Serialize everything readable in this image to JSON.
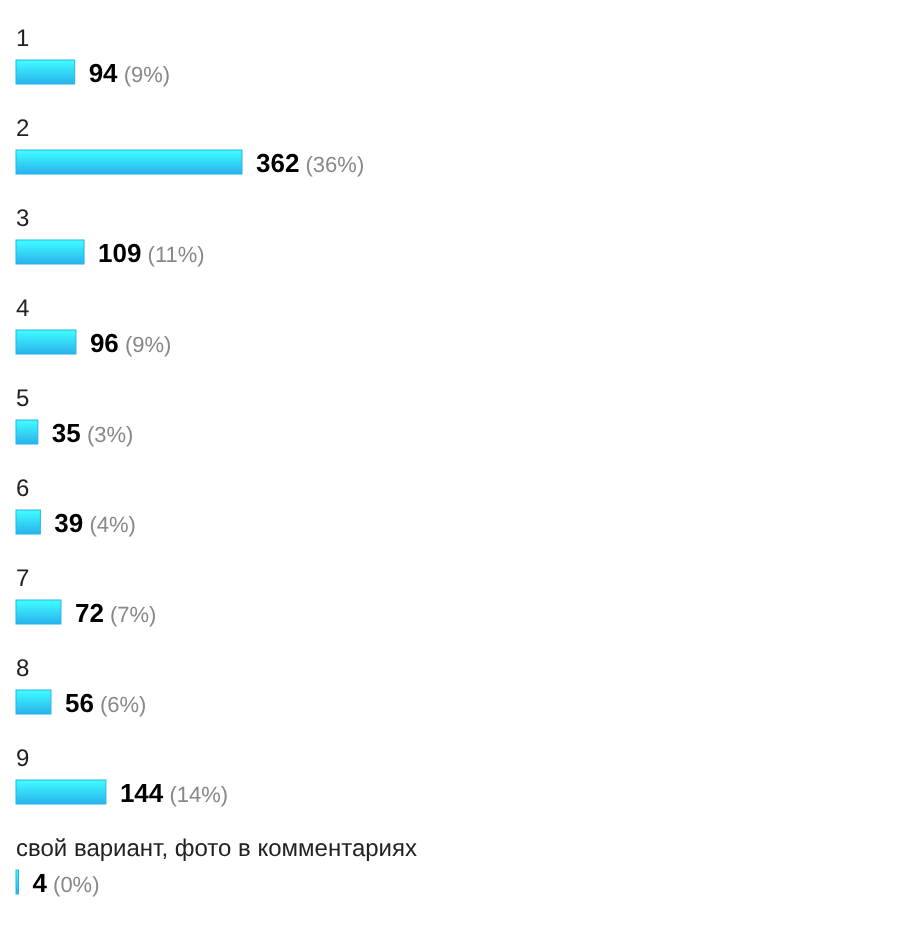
{
  "chart_data": {
    "type": "bar",
    "orientation": "horizontal",
    "categories": [
      "1",
      "2",
      "3",
      "4",
      "5",
      "6",
      "7",
      "8",
      "9",
      "свой вариант, фото в комментариях"
    ],
    "values": [
      94,
      362,
      109,
      96,
      35,
      39,
      72,
      56,
      144,
      4
    ],
    "value_labels": [
      "94 (9%)",
      "362 (36%)",
      "109 (11%)",
      "96 (9%)",
      "35 (3%)",
      "39 (4%)",
      "72 (7%)",
      "56 (6%)",
      "144 (14%)",
      "4 (0%)"
    ],
    "color": "#29b2ec"
  }
}
